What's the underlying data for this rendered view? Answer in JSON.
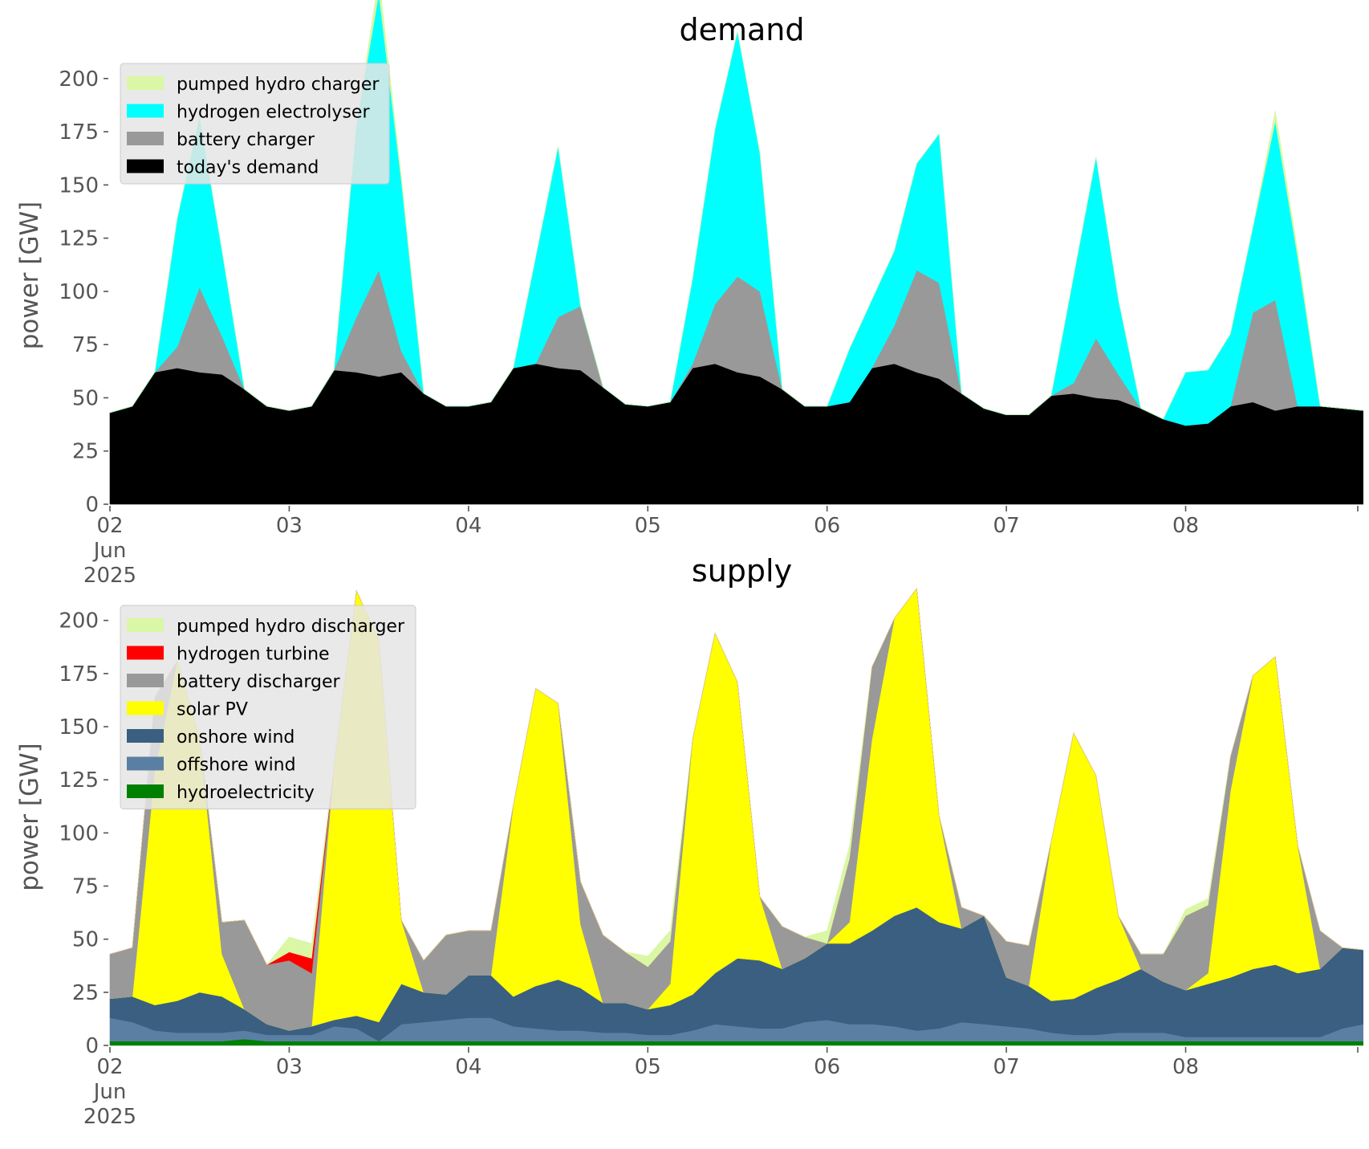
{
  "chart_data": [
    {
      "type": "area",
      "title": "demand",
      "ylabel": "power [GW]",
      "xlabel": "",
      "x_start": "2025-06-02",
      "x_end": "2025-06-09",
      "x_tick_labels": [
        [
          "02",
          "Jun",
          "2025"
        ],
        [
          "03"
        ],
        [
          "04"
        ],
        [
          "05"
        ],
        [
          "06"
        ],
        [
          "07"
        ],
        [
          "08"
        ]
      ],
      "yticks": [
        0,
        25,
        50,
        75,
        100,
        125,
        150,
        175,
        200
      ],
      "ylim": [
        0,
        215
      ],
      "grid": false,
      "legend_position": "top-left",
      "x_days": [
        0,
        0.125,
        0.25,
        0.375,
        0.5,
        0.625,
        0.75,
        0.875,
        1,
        1.125,
        1.25,
        1.375,
        1.5,
        1.625,
        1.75,
        1.875,
        2,
        2.125,
        2.25,
        2.375,
        2.5,
        2.625,
        2.75,
        2.875,
        3,
        3.125,
        3.25,
        3.375,
        3.5,
        3.625,
        3.75,
        3.875,
        4,
        4.125,
        4.25,
        4.375,
        4.5,
        4.625,
        4.75,
        4.875,
        5,
        5.125,
        5.25,
        5.375,
        5.5,
        5.625,
        5.75,
        5.875,
        6,
        6.125,
        6.25,
        6.375,
        6.5,
        6.625,
        6.75,
        6.875,
        6.99
      ],
      "series": [
        {
          "name": "today's demand",
          "color": "#000000",
          "values": [
            43,
            46,
            62,
            64,
            62,
            61,
            54,
            46,
            44,
            46,
            63,
            62,
            60,
            62,
            52,
            46,
            46,
            48,
            64,
            66,
            64,
            63,
            55,
            47,
            46,
            48,
            64,
            66,
            62,
            60,
            54,
            46,
            46,
            48,
            64,
            66,
            62,
            59,
            52,
            45,
            42,
            42,
            51,
            52,
            50,
            49,
            45,
            40,
            37,
            38,
            46,
            48,
            44,
            46,
            46,
            45,
            44
          ]
        },
        {
          "name": "battery charger",
          "color": "#999999",
          "values": [
            0,
            0,
            0,
            10,
            40,
            18,
            0,
            0,
            0,
            0,
            0,
            26,
            50,
            10,
            0,
            0,
            0,
            0,
            0,
            0,
            24,
            30,
            0,
            0,
            0,
            0,
            2,
            28,
            45,
            40,
            0,
            0,
            0,
            0,
            0,
            18,
            48,
            45,
            0,
            0,
            0,
            0,
            0,
            5,
            28,
            12,
            0,
            0,
            0,
            0,
            0,
            42,
            52,
            0,
            0,
            0,
            0
          ]
        },
        {
          "name": "hydrogen electrolyser",
          "color": "#00ffff",
          "values": [
            0,
            0,
            0,
            60,
            80,
            40,
            0,
            0,
            0,
            0,
            0,
            90,
            130,
            80,
            0,
            0,
            0,
            0,
            0,
            50,
            80,
            0,
            0,
            0,
            0,
            0,
            40,
            82,
            115,
            65,
            0,
            0,
            0,
            25,
            32,
            35,
            50,
            70,
            0,
            0,
            0,
            0,
            0,
            50,
            85,
            35,
            0,
            0,
            25,
            25,
            34,
            40,
            84,
            70,
            0,
            0,
            0
          ]
        },
        {
          "name": "pumped hydro charger",
          "color": "#d9f7a5",
          "values": [
            0,
            0,
            0,
            0,
            0,
            0,
            0,
            0,
            0,
            0,
            0,
            0,
            8,
            2,
            0,
            0,
            0,
            0,
            0,
            0,
            0,
            0,
            0,
            0,
            0,
            0,
            0,
            0,
            0,
            0,
            0,
            0,
            0,
            0,
            0,
            0,
            0,
            0,
            0,
            0,
            0,
            0,
            0,
            0,
            0,
            0,
            0,
            0,
            0,
            0,
            0,
            0,
            5,
            3,
            0,
            0,
            0
          ]
        }
      ]
    },
    {
      "type": "area",
      "title": "supply",
      "ylabel": "power [GW]",
      "xlabel": "",
      "x_start": "2025-06-02",
      "x_end": "2025-06-09",
      "x_tick_labels": [
        [
          "02",
          "Jun",
          "2025"
        ],
        [
          "03"
        ],
        [
          "04"
        ],
        [
          "05"
        ],
        [
          "06"
        ],
        [
          "07"
        ],
        [
          "08"
        ]
      ],
      "yticks": [
        0,
        25,
        50,
        75,
        100,
        125,
        150,
        175,
        200
      ],
      "ylim": [
        0,
        215
      ],
      "grid": false,
      "legend_position": "top-left",
      "x_days": [
        0,
        0.125,
        0.25,
        0.375,
        0.5,
        0.625,
        0.75,
        0.875,
        1,
        1.125,
        1.25,
        1.375,
        1.5,
        1.625,
        1.75,
        1.875,
        2,
        2.125,
        2.25,
        2.375,
        2.5,
        2.625,
        2.75,
        2.875,
        3,
        3.125,
        3.25,
        3.375,
        3.5,
        3.625,
        3.75,
        3.875,
        4,
        4.125,
        4.25,
        4.375,
        4.5,
        4.625,
        4.75,
        4.875,
        5,
        5.125,
        5.25,
        5.375,
        5.5,
        5.625,
        5.75,
        5.875,
        6,
        6.125,
        6.25,
        6.375,
        6.5,
        6.625,
        6.75,
        6.875,
        6.99
      ],
      "series": [
        {
          "name": "hydroelectricity",
          "color": "#008000",
          "values": [
            2,
            2,
            2,
            2,
            2,
            2,
            3,
            2,
            2,
            2,
            2,
            2,
            2,
            2,
            2,
            2,
            2,
            2,
            2,
            2,
            2,
            2,
            2,
            2,
            2,
            2,
            2,
            2,
            2,
            2,
            2,
            2,
            2,
            2,
            2,
            2,
            2,
            2,
            2,
            2,
            2,
            2,
            2,
            2,
            2,
            2,
            2,
            2,
            2,
            2,
            2,
            2,
            2,
            2,
            2,
            2,
            2
          ]
        },
        {
          "name": "offshore wind",
          "color": "#5b7fa3",
          "values": [
            11,
            9,
            5,
            4,
            4,
            4,
            4,
            3,
            3,
            3,
            7,
            6,
            0,
            8,
            9,
            10,
            11,
            11,
            7,
            6,
            5,
            5,
            4,
            4,
            3,
            3,
            5,
            8,
            7,
            6,
            6,
            9,
            10,
            8,
            8,
            7,
            5,
            6,
            9,
            8,
            7,
            6,
            4,
            3,
            3,
            4,
            4,
            4,
            2,
            2,
            2,
            2,
            2,
            2,
            2,
            6,
            8
          ]
        },
        {
          "name": "onshore wind",
          "color": "#3a5f81",
          "values": [
            9,
            12,
            12,
            15,
            19,
            17,
            10,
            5,
            2,
            4,
            3,
            6,
            9,
            19,
            14,
            12,
            20,
            20,
            14,
            20,
            24,
            20,
            14,
            14,
            12,
            14,
            17,
            24,
            32,
            32,
            28,
            30,
            36,
            38,
            44,
            52,
            58,
            50,
            44,
            51,
            23,
            20,
            15,
            17,
            22,
            25,
            30,
            24,
            22,
            25,
            28,
            32,
            34,
            30,
            32,
            38,
            35
          ]
        },
        {
          "name": "solar PV",
          "color": "#ffff00",
          "values": [
            0,
            0,
            110,
            160,
            120,
            20,
            0,
            0,
            0,
            0,
            120,
            200,
            180,
            30,
            0,
            0,
            0,
            0,
            90,
            140,
            130,
            30,
            0,
            0,
            0,
            10,
            120,
            160,
            130,
            30,
            0,
            0,
            0,
            10,
            90,
            140,
            150,
            50,
            0,
            0,
            0,
            0,
            75,
            125,
            100,
            30,
            0,
            0,
            0,
            5,
            88,
            138,
            145,
            60,
            0,
            0,
            0
          ]
        },
        {
          "name": "battery discharger",
          "color": "#999999",
          "values": [
            21,
            23,
            35,
            0,
            0,
            15,
            42,
            28,
            33,
            25,
            0,
            0,
            0,
            0,
            15,
            28,
            21,
            21,
            0,
            0,
            0,
            20,
            32,
            24,
            20,
            20,
            0,
            0,
            0,
            0,
            20,
            10,
            0,
            30,
            34,
            0,
            0,
            0,
            10,
            0,
            17,
            19,
            0,
            0,
            0,
            0,
            7,
            13,
            35,
            32,
            16,
            0,
            0,
            0,
            18,
            0,
            0
          ]
        },
        {
          "name": "hydrogen turbine",
          "color": "#ff0000",
          "values": [
            0,
            0,
            0,
            0,
            0,
            0,
            0,
            0,
            4,
            7,
            0,
            0,
            0,
            0,
            0,
            0,
            0,
            0,
            0,
            0,
            0,
            0,
            0,
            0,
            0,
            0,
            0,
            0,
            0,
            0,
            0,
            0,
            0,
            0,
            0,
            0,
            0,
            0,
            0,
            0,
            0,
            0,
            0,
            0,
            0,
            0,
            0,
            0,
            0,
            0,
            0,
            0,
            0,
            0,
            0,
            0,
            0
          ]
        },
        {
          "name": "pumped hydro discharger",
          "color": "#d9f7a5",
          "values": [
            0,
            0,
            0,
            0,
            0,
            0,
            0,
            0,
            7,
            7,
            0,
            0,
            0,
            0,
            0,
            0,
            0,
            0,
            0,
            0,
            0,
            0,
            0,
            0,
            5,
            5,
            0,
            0,
            0,
            0,
            0,
            0,
            6,
            6,
            0,
            0,
            0,
            0,
            0,
            0,
            0,
            0,
            0,
            0,
            0,
            0,
            0,
            0,
            3,
            3,
            0,
            0,
            0,
            0,
            0,
            0,
            0
          ]
        }
      ]
    }
  ]
}
